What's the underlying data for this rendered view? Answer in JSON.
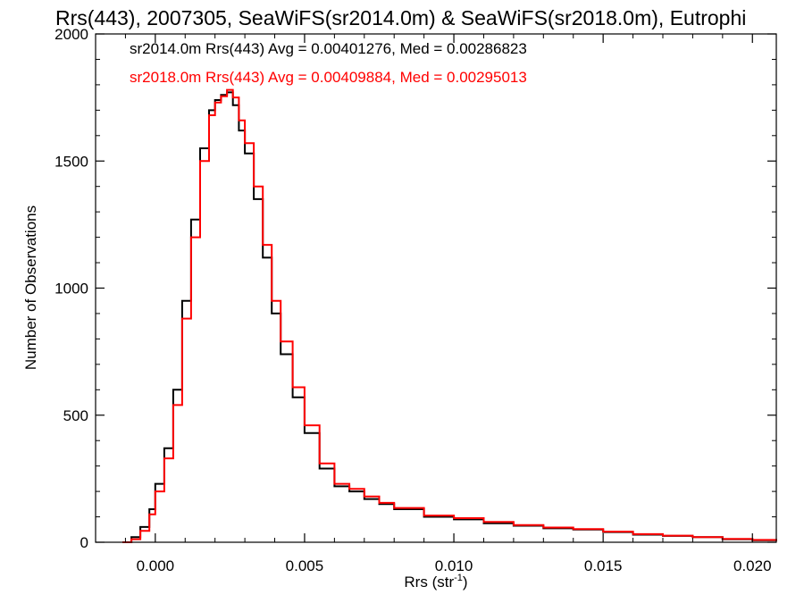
{
  "chart_data": {
    "type": "line",
    "title": "Rrs(443), 2007305, SeaWiFS(sr2014.0m) & SeaWiFS(sr2018.0m), Eutrophi",
    "xlabel": "Rrs (str",
    "xlabel_sup": "-1",
    "xlabel_close": ")",
    "ylabel": "Number of Observations",
    "xlim": [
      -0.002,
      0.0208
    ],
    "ylim": [
      0,
      2000
    ],
    "xticks": [
      "0.000",
      "0.005",
      "0.010",
      "0.015",
      "0.020"
    ],
    "xtick_values": [
      0.0,
      0.005,
      0.01,
      0.015,
      0.02
    ],
    "yticks": [
      "0",
      "500",
      "1000",
      "1500",
      "2000"
    ],
    "ytick_values": [
      0,
      500,
      1000,
      1500,
      2000
    ],
    "grid": false,
    "legend_position": "top-left",
    "series": [
      {
        "name": "sr2014.0m",
        "color": "#000000",
        "legend": "sr2014.0m Rrs(443) Avg = 0.00401276, Med = 0.00286823",
        "x": [
          -0.0011,
          -0.0008,
          -0.0005,
          -0.0002,
          0.0,
          0.0003,
          0.0006,
          0.0009,
          0.0012,
          0.0015,
          0.0018,
          0.002,
          0.0022,
          0.0024,
          0.0026,
          0.0028,
          0.003,
          0.0033,
          0.0036,
          0.0039,
          0.0042,
          0.0046,
          0.005,
          0.0055,
          0.006,
          0.0065,
          0.007,
          0.0075,
          0.008,
          0.009,
          0.01,
          0.011,
          0.012,
          0.013,
          0.014,
          0.015,
          0.016,
          0.017,
          0.018,
          0.019,
          0.02,
          0.0208
        ],
        "y": [
          0,
          20,
          60,
          130,
          230,
          370,
          600,
          950,
          1270,
          1550,
          1700,
          1740,
          1760,
          1770,
          1720,
          1620,
          1530,
          1350,
          1120,
          900,
          740,
          570,
          430,
          290,
          220,
          200,
          170,
          150,
          130,
          100,
          90,
          75,
          65,
          55,
          50,
          40,
          30,
          25,
          20,
          12,
          8,
          5
        ]
      },
      {
        "name": "sr2018.0m",
        "color": "#ff0000",
        "legend": "sr2018.0m Rrs(443) Avg = 0.00409884, Med = 0.00295013",
        "x": [
          -0.0011,
          -0.0008,
          -0.0005,
          -0.0002,
          0.0,
          0.0003,
          0.0006,
          0.0009,
          0.0012,
          0.0015,
          0.0018,
          0.002,
          0.0022,
          0.0024,
          0.0026,
          0.0028,
          0.003,
          0.0033,
          0.0036,
          0.0039,
          0.0042,
          0.0046,
          0.005,
          0.0055,
          0.006,
          0.0065,
          0.007,
          0.0075,
          0.008,
          0.009,
          0.01,
          0.011,
          0.012,
          0.013,
          0.014,
          0.015,
          0.016,
          0.017,
          0.018,
          0.019,
          0.02,
          0.0208
        ],
        "y": [
          0,
          12,
          45,
          110,
          200,
          330,
          540,
          880,
          1200,
          1500,
          1680,
          1730,
          1755,
          1780,
          1750,
          1660,
          1570,
          1400,
          1170,
          950,
          790,
          610,
          460,
          310,
          230,
          210,
          180,
          155,
          135,
          105,
          95,
          80,
          68,
          58,
          52,
          42,
          32,
          26,
          20,
          13,
          9,
          5
        ]
      }
    ]
  }
}
